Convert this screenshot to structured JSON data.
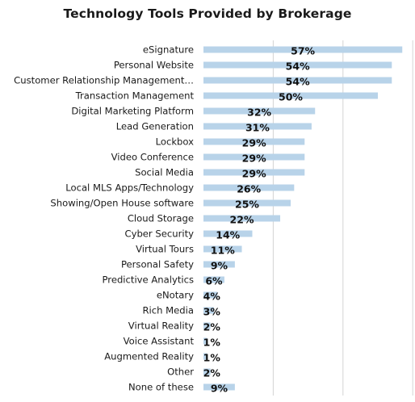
{
  "chart_data": {
    "type": "bar",
    "orientation": "horizontal",
    "title": "Technology Tools Provided by Brokerage",
    "xlabel": "",
    "ylabel": "",
    "categories": [
      "eSignature",
      "Personal Website",
      "Customer Relationship Management…",
      "Transaction Management",
      "Digital Marketing Platform",
      "Lead Generation",
      "Lockbox",
      "Video Conference",
      "Social Media",
      "Local MLS Apps/Technology",
      "Showing/Open House software",
      "Cloud Storage",
      "Cyber Security",
      "Virtual Tours",
      "Personal Safety",
      "Predictive Analytics",
      "eNotary",
      "Rich Media",
      "Virtual Reality",
      "Voice Assistant",
      "Augmented Reality",
      "Other",
      "None of these"
    ],
    "values": [
      57,
      54,
      54,
      50,
      32,
      31,
      29,
      29,
      29,
      26,
      25,
      22,
      14,
      11,
      9,
      6,
      4,
      3,
      2,
      1,
      1,
      2,
      9
    ],
    "data_labels": [
      "57%",
      "54%",
      "54%",
      "50%",
      "32%",
      "31%",
      "29%",
      "29%",
      "29%",
      "26%",
      "25%",
      "22%",
      "14%",
      "11%",
      "9%",
      "6%",
      "4%",
      "3%",
      "2%",
      "1%",
      "1%",
      "2%",
      "9%"
    ],
    "xlim": [
      0,
      60
    ],
    "grid": true,
    "legend": "none",
    "colors": {
      "bar": "#b8d3e9",
      "grid": "#d4d4d4",
      "text": "#1a1a1a"
    }
  }
}
